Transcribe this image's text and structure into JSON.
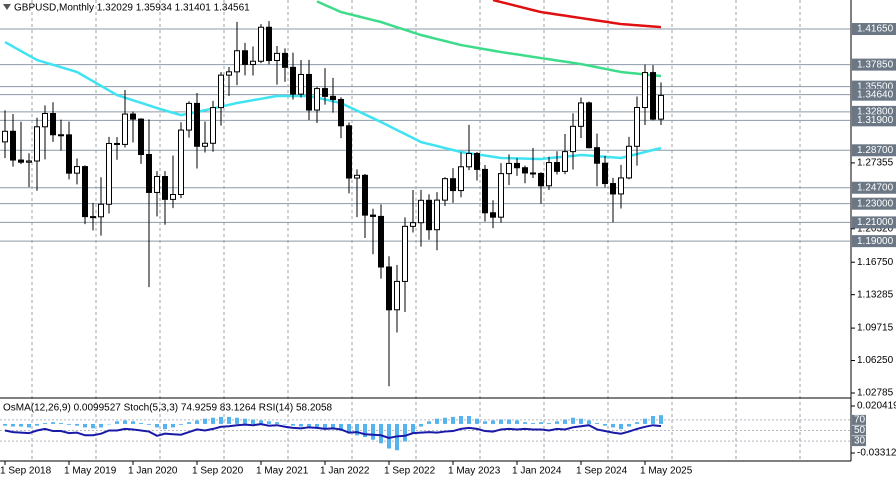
{
  "chart_data": [
    {
      "type": "candlestick",
      "title": "GBPUSD,Monthly  1.32029 1.35934 1.31401 1.34561",
      "categories": [
        "1 Sep 2018",
        null,
        null,
        null,
        null,
        null,
        null,
        null,
        "1 May 2019",
        null,
        null,
        null,
        null,
        null,
        null,
        null,
        "1 Jan 2020",
        null,
        null,
        null,
        null,
        null,
        null,
        null,
        "1 Sep 2020",
        null,
        null,
        null,
        null,
        null,
        null,
        null,
        "1 May 2021",
        null,
        null,
        null,
        null,
        null,
        null,
        null,
        "1 Jan 2022",
        null,
        null,
        null,
        null,
        null,
        null,
        null,
        "1 Sep 2022",
        null,
        null,
        null,
        null,
        null,
        null,
        null,
        "1 May 2023",
        null,
        null,
        null,
        null,
        null,
        null,
        null,
        "1 Jan 2024",
        null,
        null,
        null,
        null,
        null,
        null,
        null,
        "1 Sep 2024",
        null,
        null,
        null,
        null,
        null,
        null,
        null,
        "1 May 2025",
        null,
        null
      ],
      "open": [
        1.296,
        1.3073,
        1.2766,
        1.2743,
        1.2756,
        1.3121,
        1.3263,
        1.3036,
        1.3035,
        1.2626,
        1.2696,
        1.2162,
        1.216,
        1.2294,
        1.2943,
        1.2933,
        1.3257,
        1.3203,
        1.2825,
        1.242,
        1.259,
        1.2346,
        1.2398,
        1.3086,
        1.3371,
        1.2913,
        1.2945,
        1.3326,
        1.3673,
        1.3708,
        1.3933,
        1.3787,
        1.3821,
        1.4184,
        1.3829,
        1.3905,
        1.3756,
        1.347,
        1.368,
        1.33,
        1.3529,
        1.3446,
        1.3413,
        1.3132,
        1.2574,
        1.2603,
        1.2178,
        1.2164,
        1.1624,
        1.1167,
        1.147,
        1.2058,
        1.2097,
        1.2336,
        1.2022,
        1.2338,
        1.2567,
        1.244,
        1.2694,
        1.2836,
        1.2666,
        1.2203,
        1.2156,
        1.2621,
        1.273,
        1.2684,
        1.2628,
        1.2623,
        1.2491,
        1.2739,
        1.2645,
        1.2856,
        1.3126,
        1.3376,
        1.2898,
        1.2732,
        1.2515,
        1.2404,
        1.2575,
        1.2913,
        1.3327,
        1.37,
        1.32029
      ],
      "high": [
        1.3297,
        1.3258,
        1.3175,
        1.2839,
        1.3217,
        1.335,
        1.3383,
        1.3197,
        1.3176,
        1.2783,
        1.2709,
        1.2309,
        1.2582,
        1.3013,
        1.3011,
        1.3514,
        1.3284,
        1.3212,
        1.32,
        1.2648,
        1.2647,
        1.2813,
        1.317,
        1.3394,
        1.3482,
        1.3177,
        1.3398,
        1.3705,
        1.3759,
        1.4241,
        1.4017,
        1.3979,
        1.4218,
        1.425,
        1.3984,
        1.3958,
        1.3913,
        1.3834,
        1.3835,
        1.355,
        1.3748,
        1.3644,
        1.3437,
        1.3167,
        1.2667,
        1.2617,
        1.2246,
        1.2293,
        1.1738,
        1.1645,
        1.2154,
        1.2446,
        1.2448,
        1.2401,
        1.2424,
        1.2584,
        1.268,
        1.2848,
        1.3142,
        1.2852,
        1.2713,
        1.2337,
        1.2733,
        1.2827,
        1.2785,
        1.2707,
        1.2894,
        1.2635,
        1.2801,
        1.286,
        1.3044,
        1.3266,
        1.3434,
        1.3391,
        1.3048,
        1.2811,
        1.2576,
        1.2715,
        1.3014,
        1.3444,
        1.3785,
        1.378,
        1.35934
      ],
      "low": [
        1.2786,
        1.2696,
        1.2723,
        1.2477,
        1.2438,
        1.2773,
        1.296,
        1.2866,
        1.2559,
        1.2506,
        1.2082,
        1.2015,
        1.1959,
        1.2195,
        1.2769,
        1.29,
        1.2954,
        1.2725,
        1.1409,
        1.2165,
        1.2075,
        1.2252,
        1.236,
        1.3006,
        1.2676,
        1.2846,
        1.2855,
        1.3134,
        1.3451,
        1.3566,
        1.367,
        1.3669,
        1.3801,
        1.3787,
        1.3572,
        1.3602,
        1.3412,
        1.3434,
        1.3194,
        1.3161,
        1.3358,
        1.3273,
        1.3,
        1.241,
        1.2156,
        1.1934,
        1.176,
        1.15,
        1.035,
        1.0924,
        1.1143,
        1.1992,
        1.1841,
        1.1915,
        1.1803,
        1.2275,
        1.2308,
        1.2369,
        1.2659,
        1.2548,
        1.211,
        1.2037,
        1.2096,
        1.25,
        1.2597,
        1.2518,
        1.2574,
        1.2299,
        1.2446,
        1.2612,
        1.2616,
        1.2665,
        1.3002,
        1.289,
        1.2486,
        1.2474,
        1.21,
        1.2249,
        1.2561,
        1.2707,
        1.314,
        1.319,
        1.31401
      ],
      "close": [
        1.3073,
        1.2766,
        1.2743,
        1.2756,
        1.3121,
        1.3263,
        1.3036,
        1.3035,
        1.2626,
        1.2696,
        1.2162,
        1.216,
        1.2294,
        1.2943,
        1.2933,
        1.3257,
        1.3203,
        1.2825,
        1.242,
        1.259,
        1.2346,
        1.2398,
        1.3086,
        1.3371,
        1.2913,
        1.2945,
        1.3326,
        1.3673,
        1.3708,
        1.3933,
        1.3787,
        1.3821,
        1.4184,
        1.3829,
        1.3905,
        1.3756,
        1.347,
        1.368,
        1.33,
        1.3529,
        1.3446,
        1.3413,
        1.3132,
        1.2574,
        1.2603,
        1.2178,
        1.2164,
        1.1624,
        1.1167,
        1.147,
        1.2058,
        1.2097,
        1.2336,
        1.2022,
        1.2338,
        1.2567,
        1.244,
        1.2694,
        1.2836,
        1.2666,
        1.2203,
        1.2156,
        1.2621,
        1.273,
        1.2684,
        1.2628,
        1.2623,
        1.2491,
        1.2739,
        1.2645,
        1.2856,
        1.3126,
        1.3376,
        1.2898,
        1.2732,
        1.2515,
        1.2404,
        1.2575,
        1.2913,
        1.3327,
        1.37,
        1.3203,
        1.34561
      ],
      "up_color": "#ffffff",
      "down_color": "#000000",
      "lines": [
        {
          "color": "#3fe3f2",
          "values": [
            1.4026,
            1.3978,
            1.393,
            1.3882,
            1.3834,
            1.3808,
            1.3783,
            1.3757,
            1.3732,
            1.3706,
            1.3657,
            1.3608,
            1.3558,
            1.3509,
            1.346,
            1.3432,
            1.3404,
            1.3377,
            1.3349,
            1.3321,
            1.3296,
            1.3271,
            1.3246,
            1.3262,
            1.3279,
            1.3298,
            1.3317,
            1.3337,
            1.3356,
            1.3375,
            1.339,
            1.3405,
            1.342,
            1.3435,
            1.345,
            1.345,
            1.345,
            1.345,
            1.345,
            1.3431,
            1.3413,
            1.3394,
            1.3375,
            1.3334,
            1.3294,
            1.3253,
            1.3213,
            1.3172,
            1.3129,
            1.3086,
            1.3044,
            1.3001,
            1.2958,
            1.2937,
            1.2916,
            1.2894,
            1.2873,
            1.2852,
            1.2839,
            1.2826,
            1.2814,
            1.2801,
            1.2788,
            1.2786,
            1.2784,
            1.2781,
            1.2779,
            1.2777,
            1.2786,
            1.2794,
            1.2803,
            1.2811,
            1.282,
            1.2814,
            1.2807,
            1.2801,
            1.2794,
            1.2788,
            1.2809,
            1.283,
            1.2852,
            1.2873,
            1.2894
          ]
        },
        {
          "color": "#3ddc8a",
          "values": [
            null,
            null,
            null,
            null,
            null,
            null,
            null,
            null,
            null,
            null,
            null,
            null,
            null,
            null,
            null,
            null,
            null,
            null,
            null,
            null,
            null,
            null,
            null,
            null,
            null,
            null,
            null,
            null,
            null,
            null,
            null,
            null,
            null,
            null,
            null,
            null,
            null,
            null,
            null,
            1.446,
            1.4422,
            1.4384,
            1.4346,
            1.4325,
            1.4304,
            1.4282,
            1.4261,
            1.424,
            1.4212,
            1.4184,
            1.4157,
            1.4129,
            1.4101,
            1.408,
            1.4058,
            1.4037,
            1.4015,
            1.3994,
            1.3979,
            1.3964,
            1.3949,
            1.3934,
            1.3919,
            1.3906,
            1.3894,
            1.3881,
            1.3868,
            1.3855,
            1.3842,
            1.3829,
            1.3817,
            1.3804,
            1.3791,
            1.3774,
            1.3757,
            1.374,
            1.3723,
            1.3706,
            1.3697,
            1.3689,
            1.368,
            1.3672,
            1.3663
          ]
        },
        {
          "color": "#e01010",
          "values": [
            null,
            null,
            null,
            null,
            null,
            null,
            null,
            null,
            null,
            null,
            null,
            null,
            null,
            null,
            null,
            null,
            null,
            null,
            null,
            null,
            null,
            null,
            null,
            null,
            null,
            null,
            null,
            null,
            null,
            null,
            null,
            null,
            null,
            null,
            null,
            null,
            null,
            null,
            null,
            null,
            null,
            null,
            null,
            null,
            null,
            null,
            null,
            null,
            null,
            null,
            null,
            null,
            null,
            null,
            null,
            null,
            null,
            null,
            null,
            null,
            null,
            1.4475,
            1.4453,
            1.4432,
            1.441,
            1.4389,
            1.4367,
            1.4346,
            1.4333,
            1.432,
            1.4308,
            1.4295,
            1.4282,
            1.4269,
            1.4256,
            1.4244,
            1.4231,
            1.4218,
            1.4212,
            1.4205,
            1.4199,
            1.4192,
            1.4186
          ]
        }
      ],
      "level_color": "#8c9aa8",
      "levels": [
        {
          "value": 1.4165,
          "label": "1.41650"
        },
        {
          "value": 1.3785,
          "label": "1.37850"
        },
        {
          "value": 1.355,
          "label": "1.35500"
        },
        {
          "value": 1.3464,
          "label": "1.34640"
        },
        {
          "value": 1.328,
          "label": "1.32800"
        },
        {
          "value": 1.319,
          "label": "1.31900"
        },
        {
          "value": 1.287,
          "label": "1.28700"
        },
        {
          "value": 1.247,
          "label": "1.24700"
        },
        {
          "value": 1.23,
          "label": "1.23000"
        },
        {
          "value": 1.21,
          "label": "1.21000"
        },
        {
          "value": 1.19,
          "label": "1.19000"
        }
      ],
      "ylim": [
        1.0225,
        1.4475
      ],
      "yticks": [
        1.02785,
        {
          "value": 1.0625,
          "label": "1.06250"
        },
        1.09715,
        1.13285,
        {
          "value": 1.1675,
          "label": "1.16750"
        },
        {
          "value": 1.2032,
          "label": "1.20320"
        },
        1.27355
      ]
    },
    {
      "type": "bar",
      "title": "OsMA(12,26,9) 0.0099527  Stoch(5,3,3) 74.9259 83.1264  RSI(14) 58.2058",
      "series": [
        {
          "color": "#55b4ee",
          "values": [
            -0.002,
            -0.003,
            -0.003,
            -0.004,
            -0.002,
            0.001,
            0.002,
            0.001,
            -0.001,
            -0.002,
            -0.004,
            -0.005,
            -0.004,
            0.0,
            0.003,
            0.004,
            0.003,
            0.001,
            -0.001,
            -0.004,
            -0.006,
            -0.004,
            -0.001,
            0.002,
            0.004,
            0.006,
            0.007,
            0.008,
            0.008,
            0.007,
            0.006,
            0.005,
            0.004,
            0.003,
            0.002,
            0.0,
            -0.002,
            -0.003,
            -0.004,
            -0.004,
            -0.005,
            -0.006,
            -0.008,
            -0.011,
            -0.013,
            -0.015,
            -0.018,
            -0.022,
            -0.028,
            -0.03,
            -0.02,
            -0.01,
            -0.003,
            0.003,
            0.006,
            0.007,
            0.008,
            0.009,
            0.009,
            0.006,
            0.003,
            0.004,
            0.005,
            0.005,
            0.004,
            0.002,
            0.001,
            0.002,
            0.001,
            0.003,
            0.005,
            0.007,
            0.006,
            0.004,
            0.001,
            -0.002,
            -0.004,
            -0.006,
            -0.003,
            0.002,
            0.006,
            0.009,
            0.0099527
          ]
        },
        {
          "color": "#1a1aa8",
          "axis": "y2",
          "values": [
            50,
            47,
            46,
            45,
            50,
            53,
            49,
            49,
            45,
            46,
            41,
            41,
            44,
            50,
            50,
            53,
            52,
            50,
            48,
            40,
            44,
            43,
            42,
            47,
            52,
            50,
            53,
            57,
            58,
            60,
            61,
            60,
            62,
            59,
            60,
            57,
            55,
            54,
            56,
            55,
            53,
            54,
            52,
            46,
            47,
            43,
            42,
            41,
            36,
            39,
            40,
            45,
            46,
            47,
            46,
            48,
            49,
            53,
            55,
            53,
            49,
            48,
            52,
            53,
            52,
            53,
            52,
            52,
            50,
            53,
            52,
            56,
            58,
            60,
            52,
            49,
            46,
            44,
            48,
            53,
            57,
            60,
            58.2058
          ]
        }
      ],
      "ylim": [
        -0.033122,
        0.020419
      ],
      "yticks": [
        0.020419,
        -0.033122
      ],
      "y2lim": [
        0,
        100
      ],
      "y2ticks": [
        70,
        50,
        30
      ]
    }
  ]
}
